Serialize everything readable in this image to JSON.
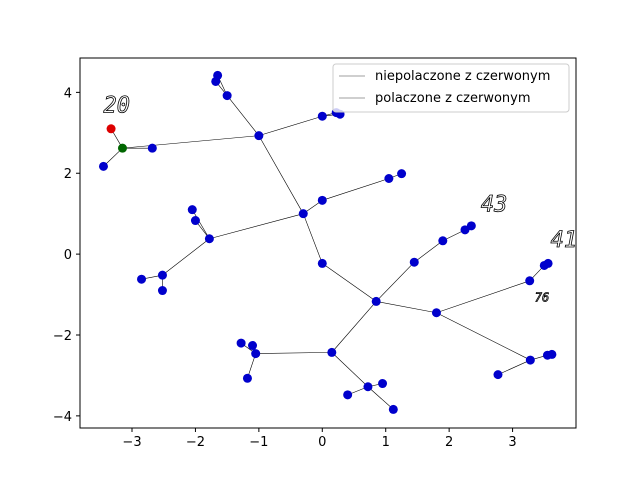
{
  "chart_data": {
    "type": "scatter",
    "title": "",
    "xlabel": "",
    "ylabel": "",
    "xlim": [
      -3.82,
      4.0
    ],
    "ylim": [
      -4.3,
      4.85
    ],
    "xticks": [
      -3,
      -2,
      -1,
      0,
      1,
      2,
      3
    ],
    "yticks": [
      -4,
      -2,
      0,
      2,
      4
    ],
    "x_tick_labels": [
      "−3",
      "−2",
      "−1",
      "0",
      "1",
      "2",
      "3"
    ],
    "y_tick_labels": [
      "−4",
      "−2",
      "0",
      "2",
      "4"
    ],
    "grid": false,
    "legend": {
      "placement": "top-right",
      "entries": [
        {
          "label": "niepolaczone z czerwonym",
          "color": "#bfbfbf"
        },
        {
          "label": "polaczone z czerwonym",
          "color": "#bfbfbf"
        }
      ]
    },
    "colors": {
      "node": "#0000cc",
      "red_node": "#dd0000",
      "green_node": "#006600",
      "edge": "#000000"
    },
    "nodes": [
      {
        "x": -3.33,
        "y": 3.1,
        "color": "red"
      },
      {
        "x": -3.15,
        "y": 2.62,
        "color": "green"
      },
      {
        "x": -3.45,
        "y": 2.17,
        "color": "blue"
      },
      {
        "x": -2.68,
        "y": 2.62,
        "color": "blue"
      },
      {
        "x": -1.0,
        "y": 2.93,
        "color": "blue"
      },
      {
        "x": -1.5,
        "y": 3.92,
        "color": "blue"
      },
      {
        "x": -1.65,
        "y": 4.42,
        "color": "blue"
      },
      {
        "x": -1.68,
        "y": 4.27,
        "color": "blue"
      },
      {
        "x": 0.0,
        "y": 3.41,
        "color": "blue"
      },
      {
        "x": 0.22,
        "y": 3.5,
        "color": "blue"
      },
      {
        "x": 0.28,
        "y": 3.46,
        "color": "blue"
      },
      {
        "x": -0.3,
        "y": 1.0,
        "color": "blue"
      },
      {
        "x": 0.0,
        "y": 1.33,
        "color": "blue"
      },
      {
        "x": 1.05,
        "y": 1.87,
        "color": "blue"
      },
      {
        "x": 1.25,
        "y": 1.99,
        "color": "blue"
      },
      {
        "x": -1.78,
        "y": 0.38,
        "color": "blue"
      },
      {
        "x": -2.05,
        "y": 1.1,
        "color": "blue"
      },
      {
        "x": -2.0,
        "y": 0.83,
        "color": "blue"
      },
      {
        "x": -2.52,
        "y": -0.52,
        "color": "blue"
      },
      {
        "x": -2.85,
        "y": -0.62,
        "color": "blue"
      },
      {
        "x": -2.52,
        "y": -0.9,
        "color": "blue"
      },
      {
        "x": 0.0,
        "y": -0.23,
        "color": "blue"
      },
      {
        "x": 0.85,
        "y": -1.17,
        "color": "blue"
      },
      {
        "x": 1.45,
        "y": -0.2,
        "color": "blue"
      },
      {
        "x": 1.9,
        "y": 0.33,
        "color": "blue"
      },
      {
        "x": 2.25,
        "y": 0.6,
        "color": "blue"
      },
      {
        "x": 2.35,
        "y": 0.7,
        "color": "blue"
      },
      {
        "x": 1.8,
        "y": -1.45,
        "color": "blue"
      },
      {
        "x": 3.27,
        "y": -0.66,
        "color": "blue"
      },
      {
        "x": 3.5,
        "y": -0.28,
        "color": "blue"
      },
      {
        "x": 3.56,
        "y": -0.23,
        "color": "blue"
      },
      {
        "x": 3.28,
        "y": -2.62,
        "color": "blue"
      },
      {
        "x": 2.77,
        "y": -2.98,
        "color": "blue"
      },
      {
        "x": 3.55,
        "y": -2.5,
        "color": "blue"
      },
      {
        "x": 3.62,
        "y": -2.48,
        "color": "blue"
      },
      {
        "x": 0.15,
        "y": -2.43,
        "color": "blue"
      },
      {
        "x": -1.05,
        "y": -2.46,
        "color": "blue"
      },
      {
        "x": -1.1,
        "y": -2.26,
        "color": "blue"
      },
      {
        "x": -1.28,
        "y": -2.2,
        "color": "blue"
      },
      {
        "x": -1.18,
        "y": -3.07,
        "color": "blue"
      },
      {
        "x": 0.72,
        "y": -3.28,
        "color": "blue"
      },
      {
        "x": 0.4,
        "y": -3.48,
        "color": "blue"
      },
      {
        "x": 0.95,
        "y": -3.2,
        "color": "blue"
      },
      {
        "x": 1.12,
        "y": -3.84,
        "color": "blue"
      }
    ],
    "edges": [
      [
        0,
        1
      ],
      [
        1,
        2
      ],
      [
        1,
        3
      ],
      [
        1,
        4
      ],
      [
        4,
        5
      ],
      [
        5,
        6
      ],
      [
        5,
        7
      ],
      [
        4,
        8
      ],
      [
        8,
        9
      ],
      [
        8,
        10
      ],
      [
        4,
        11
      ],
      [
        11,
        12
      ],
      [
        12,
        13
      ],
      [
        13,
        14
      ],
      [
        11,
        15
      ],
      [
        15,
        16
      ],
      [
        15,
        17
      ],
      [
        15,
        18
      ],
      [
        18,
        19
      ],
      [
        18,
        20
      ],
      [
        11,
        21
      ],
      [
        21,
        22
      ],
      [
        22,
        23
      ],
      [
        23,
        24
      ],
      [
        24,
        25
      ],
      [
        25,
        26
      ],
      [
        22,
        27
      ],
      [
        27,
        28
      ],
      [
        28,
        29
      ],
      [
        29,
        30
      ],
      [
        27,
        31
      ],
      [
        31,
        32
      ],
      [
        31,
        33
      ],
      [
        33,
        34
      ],
      [
        22,
        35
      ],
      [
        35,
        36
      ],
      [
        36,
        37
      ],
      [
        36,
        38
      ],
      [
        36,
        39
      ],
      [
        35,
        40
      ],
      [
        40,
        41
      ],
      [
        40,
        42
      ],
      [
        40,
        43
      ]
    ],
    "annotations": [
      {
        "text": "20",
        "x": -3.45,
        "y": 3.5,
        "size": 22
      },
      {
        "text": "43",
        "x": 2.5,
        "y": 1.05,
        "size": 22
      },
      {
        "text": "41",
        "x": 3.6,
        "y": 0.18,
        "size": 22
      },
      {
        "text": "76",
        "x": 3.35,
        "y": -1.17,
        "size": 12
      }
    ]
  }
}
